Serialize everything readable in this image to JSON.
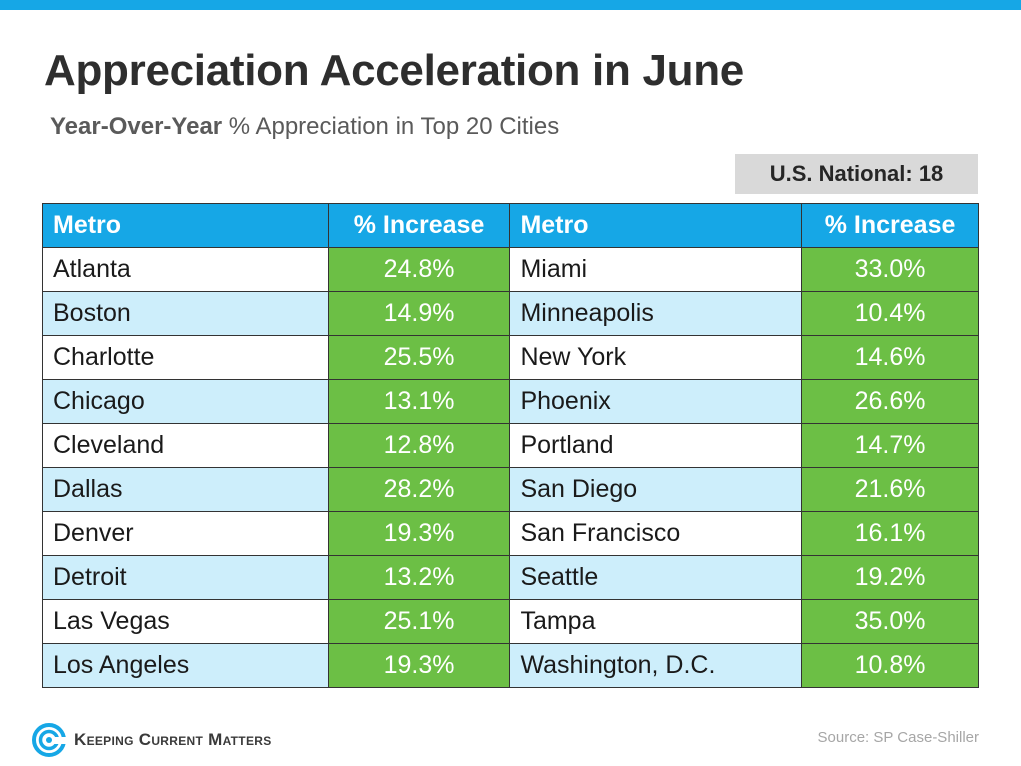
{
  "title": "Appreciation Acceleration in June",
  "subtitle": {
    "bold": "Year-Over-Year",
    "rest": " % Appreciation in Top 20 Cities"
  },
  "national": "U.S. National: 18",
  "table": {
    "headers": [
      "Metro",
      "% Increase",
      "Metro",
      "% Increase"
    ],
    "rows": [
      [
        "Atlanta",
        "24.8%",
        "Miami",
        "33.0%"
      ],
      [
        "Boston",
        "14.9%",
        "Minneapolis",
        "10.4%"
      ],
      [
        "Charlotte",
        "25.5%",
        "New York",
        "14.6%"
      ],
      [
        "Chicago",
        "13.1%",
        "Phoenix",
        "26.6%"
      ],
      [
        "Cleveland",
        "12.8%",
        "Portland",
        "14.7%"
      ],
      [
        "Dallas",
        "28.2%",
        "San Diego",
        "21.6%"
      ],
      [
        "Denver",
        "19.3%",
        "San Francisco",
        "16.1%"
      ],
      [
        "Detroit",
        "13.2%",
        "Seattle",
        "19.2%"
      ],
      [
        "Las Vegas",
        "25.1%",
        "Tampa",
        "35.0%"
      ],
      [
        "Los Angeles",
        "19.3%",
        "Washington, D.C.",
        "10.8%"
      ]
    ]
  },
  "logo_text": "Keeping Current Matters",
  "source": "Source: SP Case-Shiller",
  "colors": {
    "accent_blue": "#16a7e6",
    "green": "#6cbf45",
    "light_blue_row": "#cdeefb",
    "badge_gray": "#d9d9d9"
  }
}
